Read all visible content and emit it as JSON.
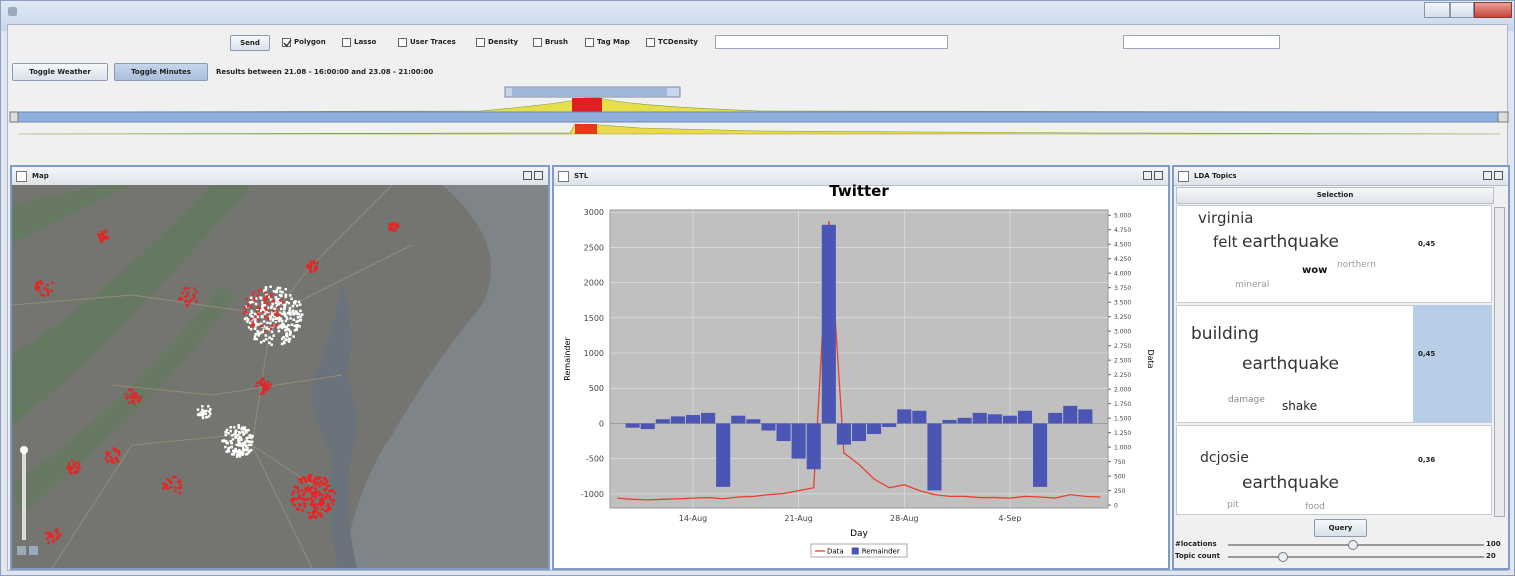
{
  "toolbar": {
    "send": "Send",
    "checkboxes": [
      {
        "label": "Polygon",
        "checked": true
      },
      {
        "label": "Lasso",
        "checked": false
      },
      {
        "label": "User Traces",
        "checked": false
      },
      {
        "label": "Density",
        "checked": false
      },
      {
        "label": "Brush",
        "checked": false
      },
      {
        "label": "Tag Map",
        "checked": false
      },
      {
        "label": "TCDensity",
        "checked": false
      }
    ],
    "buttons": [
      "Toggle Weather",
      "Toggle Minutes"
    ],
    "results": "Results between 21.08 - 16:00:00 and 23.08 - 21:00:00"
  },
  "panels": {
    "map": "Map",
    "stl": "STL",
    "lda": "LDA Topics"
  },
  "lda": {
    "header": "Selection",
    "topics": [
      {
        "words": [
          "virginia",
          "felt",
          "earthquake",
          "wow",
          "northern",
          "mineral"
        ],
        "score": "0,45"
      },
      {
        "words": [
          "building",
          "earthquake",
          "damage",
          "shake"
        ],
        "score": "0,45"
      },
      {
        "words": [
          "dcjosie",
          "earthquake",
          "pit",
          "food"
        ],
        "score": "0,36"
      }
    ],
    "query": "Query",
    "sliders": [
      {
        "label": "#locations",
        "value": 100
      },
      {
        "label": "Topic count",
        "value": 20
      }
    ]
  },
  "chart_data": {
    "type": "bar",
    "title": "Twitter",
    "x_label": "Day",
    "y_label": "Remainder",
    "y2_label": "Data",
    "legend": "bottom",
    "grid": true,
    "categories": [
      null,
      null,
      null,
      null,
      null,
      "14-Aug",
      null,
      null,
      null,
      null,
      null,
      null,
      "21-Aug",
      null,
      null,
      null,
      null,
      null,
      null,
      "28-Aug",
      null,
      null,
      null,
      null,
      null,
      null,
      "4-Sep",
      null,
      null,
      null,
      null,
      null,
      null
    ],
    "series": [
      {
        "name": "Data",
        "color": "#e8412f",
        "type": "line",
        "axis": "y2",
        "values": [
          120,
          100,
          90,
          100,
          110,
          120,
          130,
          110,
          140,
          150,
          180,
          200,
          250,
          300,
          4900,
          900,
          700,
          450,
          300,
          350,
          250,
          180,
          150,
          150,
          130,
          130,
          120,
          150,
          140,
          120,
          180,
          150,
          140
        ]
      },
      {
        "name": "Remainder",
        "color": "#4b55b3",
        "type": "bar",
        "values": [
          0,
          -60,
          -80,
          60,
          100,
          120,
          150,
          -900,
          110,
          60,
          -100,
          -250,
          -500,
          -650,
          2820,
          -300,
          -250,
          -150,
          -50,
          200,
          180,
          -950,
          50,
          80,
          150,
          130,
          110,
          180,
          -900,
          150,
          250,
          200,
          0
        ]
      }
    ],
    "ylim": [
      -1200,
      3030
    ],
    "yticks": [
      -1000,
      -500,
      0,
      500,
      1000,
      1500,
      2000,
      2500,
      3000
    ],
    "y2lim": [
      -50,
      5090
    ],
    "y2ticks": [
      0,
      250,
      500,
      750,
      {
        "value": 1000,
        "label": "1.000"
      },
      {
        "value": 1250,
        "label": "1.250"
      },
      {
        "value": 1500,
        "label": "1.500"
      },
      {
        "value": 1750,
        "label": "1.750"
      },
      {
        "value": 2000,
        "label": "2.000"
      },
      {
        "value": 2250,
        "label": "2.250"
      },
      {
        "value": 2500,
        "label": "2.500"
      },
      {
        "value": 2750,
        "label": "2.750"
      },
      {
        "value": 3000,
        "label": "3.000"
      },
      {
        "value": 3250,
        "label": "3.250"
      },
      {
        "value": 3500,
        "label": "3.500"
      },
      {
        "value": 3750,
        "label": "3.750"
      },
      {
        "value": 4000,
        "label": "4.000"
      },
      {
        "value": 4250,
        "label": "4.250"
      },
      {
        "value": 4500,
        "label": "4.500"
      },
      {
        "value": 4750,
        "label": "4.750"
      },
      {
        "value": 5000,
        "label": "5.000"
      }
    ]
  }
}
